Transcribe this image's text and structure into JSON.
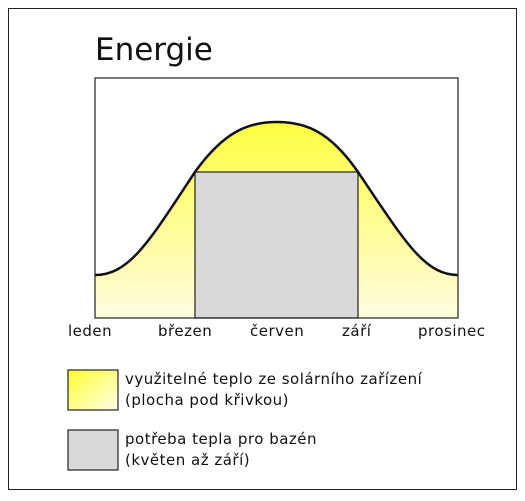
{
  "title": "Energie",
  "axis_labels": [
    "leden",
    "březen",
    "červen",
    "září",
    "prosinec"
  ],
  "legend": [
    {
      "lines": [
        "využitelné teplo ze solárního zařízení",
        "(plocha pod křivkou)"
      ]
    },
    {
      "lines": [
        "potřeba tepla pro bazén",
        "(květen až září)"
      ]
    }
  ]
}
